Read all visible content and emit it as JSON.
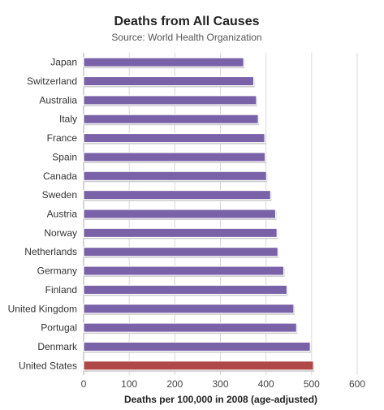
{
  "chart_data": {
    "type": "bar",
    "orientation": "horizontal",
    "title": "Deaths from All Causes",
    "subtitle": "Source: World Health Organization",
    "xlabel": "Deaths per 100,000 in 2008 (age-adjusted)",
    "ylabel": "",
    "xlim": [
      0,
      600
    ],
    "xticks": [
      0,
      100,
      200,
      300,
      400,
      500,
      600
    ],
    "grid": true,
    "categories": [
      "Japan",
      "Switzerland",
      "Australia",
      "Italy",
      "France",
      "Spain",
      "Canada",
      "Sweden",
      "Austria",
      "Norway",
      "Netherlands",
      "Germany",
      "Finland",
      "United Kingdom",
      "Portugal",
      "Denmark",
      "United States"
    ],
    "values": [
      351,
      373,
      379,
      383,
      397,
      398,
      401,
      410,
      421,
      424,
      426,
      439,
      446,
      461,
      467,
      497,
      504
    ],
    "colors": {
      "default": "#7a62a8",
      "highlight": "#b04848"
    },
    "highlight_category": "United States"
  }
}
